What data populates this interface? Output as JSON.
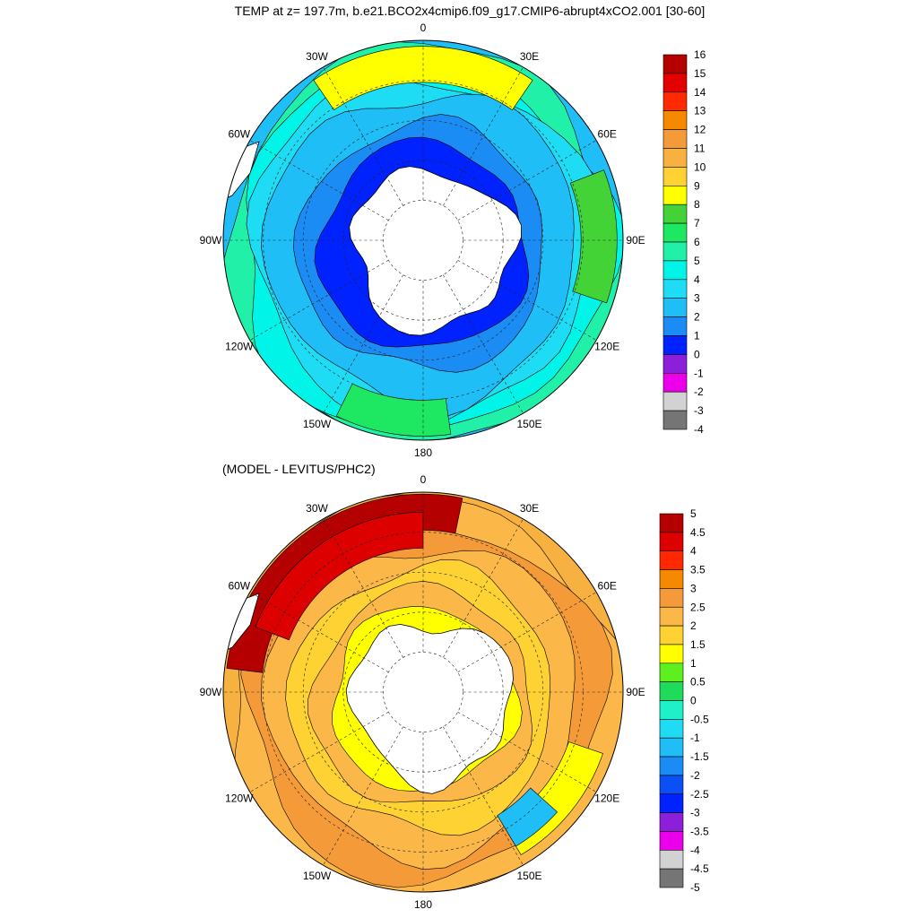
{
  "page": {
    "title": "TEMP at z= 197.7m, b.e21.BCO2x4cmip6.f09_g17.CMIP6-abrupt4xCO2.001 [30-60]",
    "subtitle": "(MODEL - LEVITUS/PHC2)"
  },
  "chart_data": [
    {
      "type": "heatmap",
      "projection": "south-polar-stereographic",
      "variable": "TEMP",
      "depth": "197.7m",
      "title": "TEMP at z= 197.7m, b.e21.BCO2x4cmip6.f09_g17.CMIP6-abrupt4xCO2.001 [30-60]",
      "longitude_labels": [
        "0",
        "30E",
        "60E",
        "90E",
        "120E",
        "150E",
        "180",
        "150W",
        "120W",
        "90W",
        "60W",
        "30W"
      ],
      "colorbar": {
        "labels": [
          "16",
          "15",
          "14",
          "13",
          "12",
          "11",
          "10",
          "9",
          "8",
          "7",
          "6",
          "5",
          "4",
          "3",
          "2",
          "1",
          "0",
          "-1",
          "-2",
          "-3",
          "-4"
        ],
        "colors": [
          "#b50000",
          "#e30000",
          "#ff2a00",
          "#f58a00",
          "#f49a38",
          "#f7b140",
          "#fed232",
          "#ffff00",
          "#43d336",
          "#1ee861",
          "#21f0a8",
          "#00f5e8",
          "#1fdcf5",
          "#1fbef6",
          "#1b8cf3",
          "#0022ff",
          "#8c1fd9",
          "#ec00ec",
          "#d2d2d2",
          "#757575"
        ]
      },
      "colors": {
        "land": "#ffffff",
        "land_outline": "#000000",
        "ocean_base": "#1fbef6"
      }
    },
    {
      "type": "heatmap",
      "projection": "south-polar-stereographic",
      "title": "(MODEL - LEVITUS/PHC2)",
      "longitude_labels": [
        "0",
        "30E",
        "60E",
        "90E",
        "120E",
        "150E",
        "180",
        "150W",
        "120W",
        "90W",
        "60W",
        "30W"
      ],
      "colorbar": {
        "labels": [
          "5",
          "4.5",
          "4",
          "3.5",
          "3",
          "2.5",
          "2",
          "1.5",
          "1",
          "0.5",
          "0",
          "-0.5",
          "-1",
          "-1.5",
          "-2",
          "-2.5",
          "-3",
          "-3.5",
          "-4",
          "-4.5",
          "-5"
        ],
        "colors": [
          "#b40000",
          "#dc0000",
          "#ff2800",
          "#f58a00",
          "#f49a38",
          "#fbb848",
          "#fed232",
          "#ffff00",
          "#5df01f",
          "#1edc5a",
          "#1ef0c8",
          "#1fdcf5",
          "#1fbef6",
          "#1b8cf3",
          "#0a50f5",
          "#0022ff",
          "#8c1fd9",
          "#ec00ec",
          "#d2d2d2",
          "#757575"
        ]
      },
      "colors": {
        "land": "#ffffff",
        "land_outline": "#000000",
        "ocean_base": "#f7b140"
      }
    }
  ]
}
